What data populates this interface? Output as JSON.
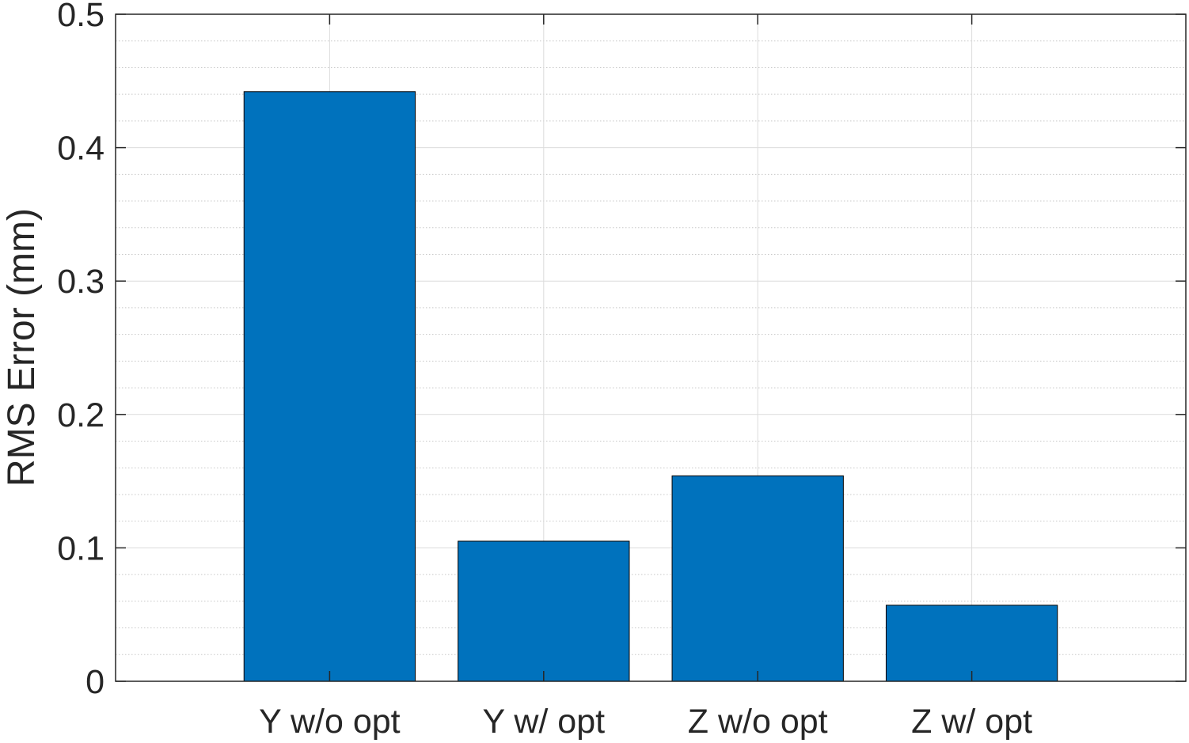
{
  "chart_data": {
    "type": "bar",
    "categories": [
      "Y w/o opt",
      "Y w/ opt",
      "Z w/o opt",
      "Z w/ opt"
    ],
    "values": [
      0.442,
      0.105,
      0.154,
      0.057
    ],
    "title": "",
    "xlabel": "",
    "ylabel": "RMS Error (mm)",
    "ylim": [
      0,
      0.5
    ],
    "yticks": [
      "0",
      "0.1",
      "0.2",
      "0.3",
      "0.4",
      "0.5"
    ],
    "grid": true,
    "minor_grid": true,
    "bar_color": "#0072BD",
    "legend": "none"
  }
}
